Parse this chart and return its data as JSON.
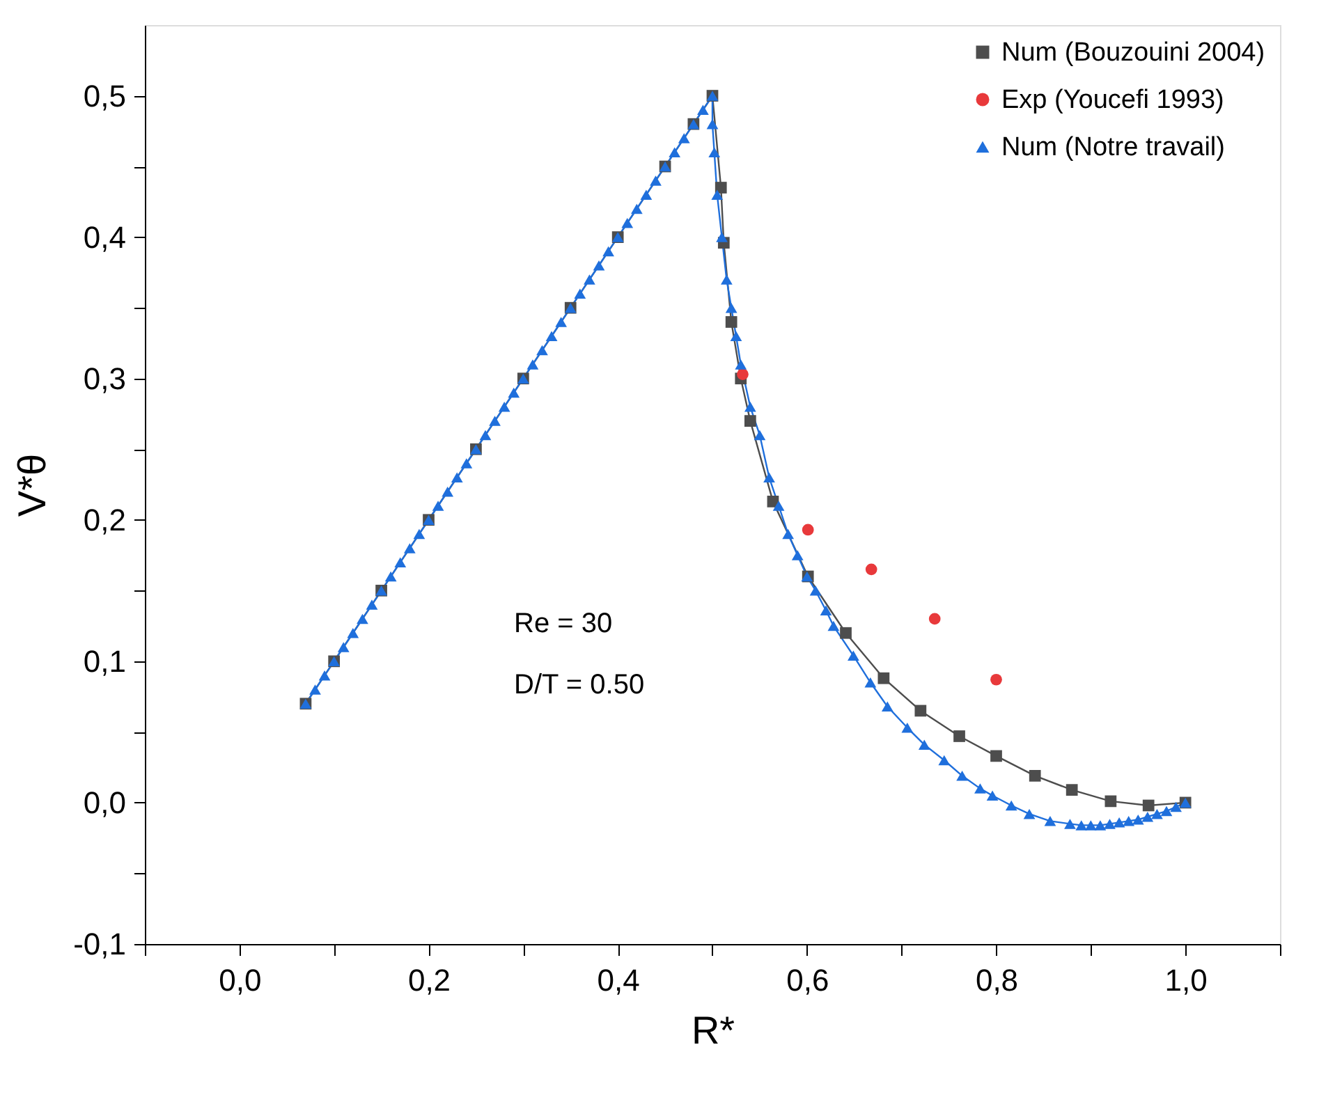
{
  "chart_data": {
    "type": "line",
    "xlabel": "R*",
    "ylabel": "V*θ",
    "xlim": [
      -0.1,
      1.1
    ],
    "ylim": [
      -0.1,
      0.55
    ],
    "xticks": [
      {
        "value": -0.1,
        "label": null
      },
      {
        "value": 0.0,
        "label": "0,0"
      },
      {
        "value": 0.1,
        "label": null
      },
      {
        "value": 0.2,
        "label": "0,2"
      },
      {
        "value": 0.3,
        "label": null
      },
      {
        "value": 0.4,
        "label": "0,4"
      },
      {
        "value": 0.5,
        "label": null
      },
      {
        "value": 0.6,
        "label": "0,6"
      },
      {
        "value": 0.7,
        "label": null
      },
      {
        "value": 0.8,
        "label": "0,8"
      },
      {
        "value": 0.9,
        "label": null
      },
      {
        "value": 1.0,
        "label": "1,0"
      },
      {
        "value": 1.1,
        "label": null
      }
    ],
    "yticks": [
      {
        "value": -0.1,
        "label": "-0,1"
      },
      {
        "value": -0.05,
        "label": null
      },
      {
        "value": 0.0,
        "label": "0,0"
      },
      {
        "value": 0.05,
        "label": null
      },
      {
        "value": 0.1,
        "label": "0,1"
      },
      {
        "value": 0.15,
        "label": null
      },
      {
        "value": 0.2,
        "label": "0,2"
      },
      {
        "value": 0.25,
        "label": null
      },
      {
        "value": 0.3,
        "label": "0,3"
      },
      {
        "value": 0.35,
        "label": null
      },
      {
        "value": 0.4,
        "label": "0,4"
      },
      {
        "value": 0.45,
        "label": null
      },
      {
        "value": 0.5,
        "label": "0,5"
      }
    ],
    "grid": false,
    "legend": "top right",
    "annotations": [
      "Re = 30",
      "D/T = 0.50"
    ],
    "series": [
      {
        "name": "Num (Bouzouini 2004)",
        "marker": "square",
        "color": "#4d4d4d",
        "x": [
          0.07,
          0.1,
          0.15,
          0.2,
          0.25,
          0.3,
          0.35,
          0.4,
          0.45,
          0.48,
          0.5,
          0.509,
          0.512,
          0.52,
          0.53,
          0.54,
          0.564,
          0.601,
          0.641,
          0.681,
          0.72,
          0.761,
          0.8,
          0.841,
          0.88,
          0.921,
          0.961,
          1.0
        ],
        "values": [
          0.07,
          0.1,
          0.15,
          0.2,
          0.25,
          0.3,
          0.35,
          0.4,
          0.45,
          0.48,
          0.5,
          0.435,
          0.396,
          0.34,
          0.3,
          0.27,
          0.213,
          0.16,
          0.12,
          0.088,
          0.065,
          0.047,
          0.033,
          0.019,
          0.009,
          0.001,
          -0.002,
          0.0
        ]
      },
      {
        "name": "Exp (Youcefi 1993)",
        "type": "scatter",
        "marker": "circle",
        "color": "#e8393b",
        "x": [
          0.532,
          0.601,
          0.668,
          0.735,
          0.8
        ],
        "values": [
          0.303,
          0.193,
          0.165,
          0.13,
          0.087
        ]
      },
      {
        "name": "Num (Notre travail)",
        "marker": "triangle",
        "color": "#1f6fdc",
        "x": [
          0.07,
          0.08,
          0.09,
          0.1,
          0.11,
          0.12,
          0.13,
          0.14,
          0.15,
          0.16,
          0.17,
          0.18,
          0.19,
          0.2,
          0.21,
          0.22,
          0.23,
          0.24,
          0.25,
          0.26,
          0.27,
          0.28,
          0.29,
          0.3,
          0.31,
          0.32,
          0.33,
          0.34,
          0.35,
          0.36,
          0.37,
          0.38,
          0.39,
          0.4,
          0.41,
          0.42,
          0.43,
          0.44,
          0.45,
          0.46,
          0.47,
          0.48,
          0.49,
          0.5,
          0.5,
          0.502,
          0.505,
          0.51,
          0.515,
          0.52,
          0.525,
          0.53,
          0.54,
          0.55,
          0.56,
          0.57,
          0.58,
          0.59,
          0.6,
          0.609,
          0.62,
          0.628,
          0.649,
          0.667,
          0.685,
          0.706,
          0.724,
          0.745,
          0.764,
          0.783,
          0.796,
          0.816,
          0.835,
          0.857,
          0.878,
          0.89,
          0.9,
          0.91,
          0.92,
          0.93,
          0.94,
          0.95,
          0.96,
          0.97,
          0.98,
          0.99,
          1.0
        ],
        "values": [
          0.07,
          0.08,
          0.09,
          0.1,
          0.11,
          0.12,
          0.13,
          0.14,
          0.15,
          0.16,
          0.17,
          0.18,
          0.19,
          0.2,
          0.21,
          0.22,
          0.23,
          0.24,
          0.25,
          0.26,
          0.27,
          0.28,
          0.29,
          0.3,
          0.31,
          0.32,
          0.33,
          0.34,
          0.35,
          0.36,
          0.37,
          0.38,
          0.39,
          0.4,
          0.41,
          0.42,
          0.43,
          0.44,
          0.45,
          0.46,
          0.47,
          0.48,
          0.49,
          0.5,
          0.48,
          0.46,
          0.43,
          0.4,
          0.37,
          0.35,
          0.33,
          0.31,
          0.28,
          0.26,
          0.23,
          0.21,
          0.19,
          0.175,
          0.16,
          0.15,
          0.136,
          0.125,
          0.104,
          0.085,
          0.068,
          0.053,
          0.041,
          0.03,
          0.019,
          0.01,
          0.005,
          -0.002,
          -0.008,
          -0.013,
          -0.015,
          -0.016,
          -0.016,
          -0.016,
          -0.015,
          -0.014,
          -0.013,
          -0.012,
          -0.01,
          -0.008,
          -0.006,
          -0.003,
          0.0
        ]
      }
    ]
  }
}
